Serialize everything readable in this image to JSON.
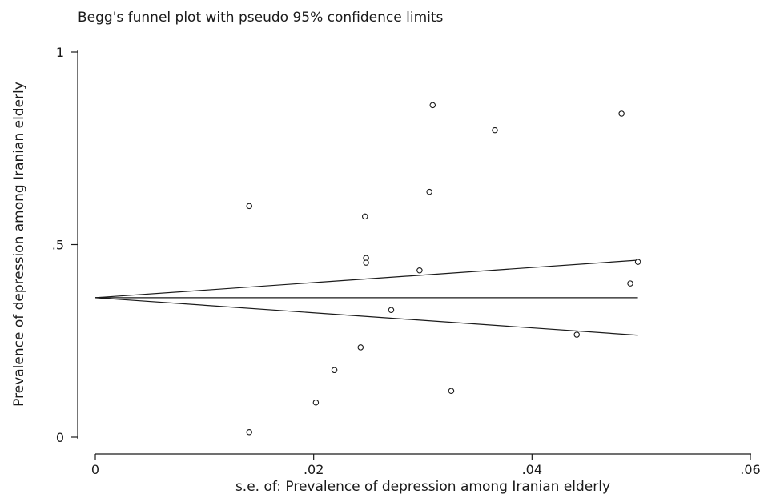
{
  "chart_data": {
    "type": "scatter",
    "title": "Begg's funnel plot with pseudo 95% confidence limits",
    "xlabel": "s.e. of: Prevalence of depression among Iranian elderly",
    "ylabel": "Prevalence of depression among Iranian elderly",
    "xlim": [
      0,
      0.06
    ],
    "ylim": [
      0,
      1
    ],
    "xticks": [
      "0",
      ".02",
      ".04",
      ".06"
    ],
    "yticks": [
      "0",
      ".5",
      "1"
    ],
    "pooled_estimate": 0.362,
    "funnel_max_se": 0.0497,
    "points": [
      {
        "x": 0.0141,
        "y": 0.013
      },
      {
        "x": 0.0141,
        "y": 0.6
      },
      {
        "x": 0.0202,
        "y": 0.09
      },
      {
        "x": 0.0219,
        "y": 0.174
      },
      {
        "x": 0.0243,
        "y": 0.233
      },
      {
        "x": 0.0247,
        "y": 0.573
      },
      {
        "x": 0.0248,
        "y": 0.465
      },
      {
        "x": 0.0248,
        "y": 0.453
      },
      {
        "x": 0.0271,
        "y": 0.33
      },
      {
        "x": 0.0297,
        "y": 0.433
      },
      {
        "x": 0.0306,
        "y": 0.637
      },
      {
        "x": 0.0309,
        "y": 0.862
      },
      {
        "x": 0.0326,
        "y": 0.12
      },
      {
        "x": 0.0366,
        "y": 0.797
      },
      {
        "x": 0.0441,
        "y": 0.266
      },
      {
        "x": 0.0482,
        "y": 0.84
      },
      {
        "x": 0.049,
        "y": 0.399
      },
      {
        "x": 0.0497,
        "y": 0.455
      }
    ],
    "grid": false,
    "legend": "none"
  }
}
